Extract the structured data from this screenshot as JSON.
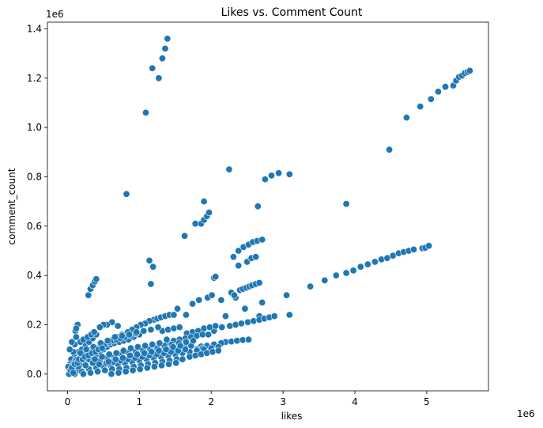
{
  "chart_data": {
    "type": "scatter",
    "title": "Likes vs. Comment Count",
    "xlabel": "likes",
    "ylabel": "comment_count",
    "x_multiplier_label": "1e6",
    "y_multiplier_label": "1e6",
    "xlim": [
      -0.28,
      5.86
    ],
    "ylim": [
      -0.068,
      1.427
    ],
    "x_ticks": [
      0,
      1,
      2,
      3,
      4,
      5
    ],
    "x_tick_labels": [
      "0",
      "1",
      "2",
      "3",
      "4",
      "5"
    ],
    "y_ticks": [
      0.0,
      0.2,
      0.4,
      0.6,
      0.8,
      1.0,
      1.2,
      1.4
    ],
    "y_tick_labels": [
      "0.0",
      "0.2",
      "0.4",
      "0.6",
      "0.8",
      "1.0",
      "1.2",
      "1.4"
    ],
    "grid": false,
    "marker_color": "#1f77b4",
    "marker_edge_color": "#ffffff",
    "points": [
      [
        1.09,
        1.06
      ],
      [
        1.18,
        1.24
      ],
      [
        1.27,
        1.2
      ],
      [
        1.32,
        1.28
      ],
      [
        1.36,
        1.32
      ],
      [
        1.39,
        1.36
      ],
      [
        0.82,
        0.73
      ],
      [
        2.25,
        0.83
      ],
      [
        2.75,
        0.79
      ],
      [
        2.84,
        0.805
      ],
      [
        2.94,
        0.815
      ],
      [
        3.09,
        0.81
      ],
      [
        4.48,
        0.91
      ],
      [
        4.72,
        1.04
      ],
      [
        4.91,
        1.085
      ],
      [
        5.06,
        1.115
      ],
      [
        5.16,
        1.145
      ],
      [
        5.26,
        1.165
      ],
      [
        5.37,
        1.17
      ],
      [
        5.41,
        1.19
      ],
      [
        5.45,
        1.205
      ],
      [
        5.49,
        1.21
      ],
      [
        5.53,
        1.22
      ],
      [
        5.57,
        1.225
      ],
      [
        5.6,
        1.23
      ],
      [
        1.63,
        0.56
      ],
      [
        1.78,
        0.61
      ],
      [
        1.86,
        0.61
      ],
      [
        1.9,
        0.625
      ],
      [
        1.94,
        0.64
      ],
      [
        1.97,
        0.655
      ],
      [
        1.9,
        0.7
      ],
      [
        2.65,
        0.68
      ],
      [
        3.88,
        0.69
      ],
      [
        1.14,
        0.46
      ],
      [
        1.19,
        0.435
      ],
      [
        1.16,
        0.365
      ],
      [
        0.29,
        0.32
      ],
      [
        0.32,
        0.345
      ],
      [
        0.35,
        0.36
      ],
      [
        0.38,
        0.375
      ],
      [
        0.4,
        0.385
      ],
      [
        2.31,
        0.475
      ],
      [
        2.38,
        0.5
      ],
      [
        2.45,
        0.515
      ],
      [
        2.52,
        0.525
      ],
      [
        2.58,
        0.535
      ],
      [
        2.64,
        0.54
      ],
      [
        2.71,
        0.545
      ],
      [
        2.38,
        0.44
      ],
      [
        2.5,
        0.455
      ],
      [
        2.56,
        0.47
      ],
      [
        2.62,
        0.475
      ],
      [
        2.28,
        0.33
      ],
      [
        2.34,
        0.31
      ],
      [
        2.4,
        0.34
      ],
      [
        2.44,
        0.345
      ],
      [
        2.49,
        0.35
      ],
      [
        2.53,
        0.355
      ],
      [
        2.57,
        0.36
      ],
      [
        2.62,
        0.365
      ],
      [
        2.67,
        0.37
      ],
      [
        2.04,
        0.39
      ],
      [
        2.06,
        0.395
      ],
      [
        3.38,
        0.355
      ],
      [
        3.58,
        0.38
      ],
      [
        3.74,
        0.4
      ],
      [
        3.88,
        0.41
      ],
      [
        3.98,
        0.42
      ],
      [
        4.08,
        0.435
      ],
      [
        4.18,
        0.445
      ],
      [
        4.28,
        0.455
      ],
      [
        4.37,
        0.465
      ],
      [
        4.45,
        0.47
      ],
      [
        4.53,
        0.48
      ],
      [
        4.61,
        0.49
      ],
      [
        4.68,
        0.495
      ],
      [
        4.75,
        0.5
      ],
      [
        4.82,
        0.505
      ],
      [
        4.94,
        0.51
      ],
      [
        4.98,
        0.512
      ],
      [
        5.03,
        0.52
      ],
      [
        1.53,
        0.265
      ],
      [
        1.65,
        0.24
      ],
      [
        1.74,
        0.285
      ],
      [
        1.83,
        0.3
      ],
      [
        1.95,
        0.31
      ],
      [
        2.01,
        0.32
      ],
      [
        2.14,
        0.3
      ],
      [
        2.32,
        0.32
      ],
      [
        2.47,
        0.265
      ],
      [
        2.67,
        0.235
      ],
      [
        2.71,
        0.29
      ],
      [
        3.05,
        0.32
      ],
      [
        3.09,
        0.24
      ],
      [
        2.26,
        0.195
      ],
      [
        2.34,
        0.2
      ],
      [
        2.42,
        0.205
      ],
      [
        2.51,
        0.21
      ],
      [
        2.59,
        0.215
      ],
      [
        2.67,
        0.22
      ],
      [
        2.74,
        0.225
      ],
      [
        2.81,
        0.23
      ],
      [
        2.88,
        0.235
      ],
      [
        2.15,
        0.19
      ],
      [
        2.04,
        0.175
      ],
      [
        2.2,
        0.235
      ],
      [
        2.2,
        0.13
      ],
      [
        2.28,
        0.132
      ],
      [
        2.36,
        0.135
      ],
      [
        2.44,
        0.138
      ],
      [
        2.52,
        0.14
      ],
      [
        2.04,
        0.12
      ],
      [
        2.14,
        0.125
      ],
      [
        1.94,
        0.115
      ],
      [
        1.86,
        0.112
      ],
      [
        1.2,
        0.22
      ],
      [
        1.25,
        0.225
      ],
      [
        1.3,
        0.23
      ],
      [
        1.36,
        0.235
      ],
      [
        1.42,
        0.24
      ],
      [
        1.48,
        0.24
      ],
      [
        1.14,
        0.215
      ],
      [
        1.08,
        0.205
      ],
      [
        1.02,
        0.2
      ],
      [
        0.96,
        0.19
      ],
      [
        0.9,
        0.18
      ],
      [
        0.84,
        0.17
      ],
      [
        0.76,
        0.16
      ],
      [
        0.7,
        0.15
      ],
      [
        0.63,
        0.14
      ],
      [
        1.32,
        0.175
      ],
      [
        1.4,
        0.18
      ],
      [
        1.48,
        0.185
      ],
      [
        1.56,
        0.19
      ],
      [
        1.66,
        0.165
      ],
      [
        1.74,
        0.17
      ],
      [
        1.82,
        0.175
      ],
      [
        1.9,
        0.185
      ],
      [
        1.98,
        0.19
      ],
      [
        2.06,
        0.195
      ],
      [
        1.4,
        0.13
      ],
      [
        1.48,
        0.135
      ],
      [
        1.56,
        0.14
      ],
      [
        1.64,
        0.145
      ],
      [
        1.72,
        0.15
      ],
      [
        1.8,
        0.155
      ],
      [
        1.88,
        0.16
      ],
      [
        1.96,
        0.16
      ],
      [
        1.24,
        0.09
      ],
      [
        1.32,
        0.095
      ],
      [
        1.4,
        0.1
      ],
      [
        1.48,
        0.105
      ],
      [
        1.56,
        0.11
      ],
      [
        1.64,
        0.11
      ],
      [
        1.72,
        0.115
      ],
      [
        1.8,
        0.1
      ],
      [
        1.88,
        0.105
      ],
      [
        0.14,
        0.2
      ],
      [
        0.11,
        0.175
      ],
      [
        0.12,
        0.185
      ],
      [
        0.62,
        0.21
      ],
      [
        0.7,
        0.195
      ],
      [
        0.55,
        0.2
      ],
      [
        0.5,
        0.2
      ],
      [
        0.45,
        0.19
      ],
      [
        0.05,
        0.01
      ],
      [
        0.08,
        0.02
      ],
      [
        0.12,
        0.03
      ],
      [
        0.16,
        0.015
      ],
      [
        0.2,
        0.04
      ],
      [
        0.25,
        0.05
      ],
      [
        0.3,
        0.06
      ],
      [
        0.35,
        0.07
      ],
      [
        0.4,
        0.08
      ],
      [
        0.45,
        0.09
      ],
      [
        0.5,
        0.1
      ],
      [
        0.55,
        0.11
      ],
      [
        0.6,
        0.12
      ],
      [
        0.65,
        0.125
      ],
      [
        0.72,
        0.13
      ],
      [
        0.78,
        0.135
      ],
      [
        0.85,
        0.14
      ],
      [
        0.92,
        0.15
      ],
      [
        1.0,
        0.16
      ],
      [
        0.06,
        0.05
      ],
      [
        0.1,
        0.07
      ],
      [
        0.15,
        0.09
      ],
      [
        0.2,
        0.1
      ],
      [
        0.25,
        0.12
      ],
      [
        0.3,
        0.13
      ],
      [
        0.35,
        0.145
      ],
      [
        0.4,
        0.16
      ],
      [
        0.1,
        0.0
      ],
      [
        0.2,
        0.01
      ],
      [
        0.3,
        0.02
      ],
      [
        0.4,
        0.025
      ],
      [
        0.5,
        0.03
      ],
      [
        0.6,
        0.035
      ],
      [
        0.7,
        0.04
      ],
      [
        0.8,
        0.045
      ],
      [
        0.9,
        0.05
      ],
      [
        1.0,
        0.055
      ],
      [
        1.1,
        0.06
      ],
      [
        1.2,
        0.065
      ],
      [
        1.3,
        0.07
      ],
      [
        1.4,
        0.075
      ],
      [
        1.5,
        0.08
      ],
      [
        1.6,
        0.085
      ],
      [
        1.7,
        0.09
      ],
      [
        1.8,
        0.095
      ],
      [
        1.9,
        0.1
      ],
      [
        2.0,
        0.105
      ],
      [
        2.1,
        0.11
      ],
      [
        0.15,
        0.03
      ],
      [
        0.25,
        0.035
      ],
      [
        0.35,
        0.045
      ],
      [
        0.45,
        0.055
      ],
      [
        0.55,
        0.065
      ],
      [
        0.65,
        0.07
      ],
      [
        0.75,
        0.08
      ],
      [
        0.85,
        0.085
      ],
      [
        0.95,
        0.09
      ],
      [
        1.05,
        0.095
      ],
      [
        1.15,
        0.1
      ],
      [
        1.25,
        0.105
      ],
      [
        1.35,
        0.115
      ],
      [
        1.45,
        0.12
      ],
      [
        1.55,
        0.125
      ],
      [
        1.65,
        0.13
      ],
      [
        1.75,
        0.135
      ],
      [
        0.05,
        0.06
      ],
      [
        0.08,
        0.09
      ],
      [
        0.03,
        0.1
      ],
      [
        0.1,
        0.12
      ],
      [
        0.06,
        0.13
      ],
      [
        0.12,
        0.15
      ],
      [
        0.18,
        0.13
      ],
      [
        0.22,
        0.14
      ],
      [
        0.28,
        0.15
      ],
      [
        0.33,
        0.16
      ],
      [
        0.37,
        0.17
      ],
      [
        0.02,
        0.0
      ],
      [
        0.03,
        0.02
      ],
      [
        0.04,
        0.04
      ],
      [
        0.01,
        0.03
      ],
      [
        0.07,
        0.035
      ],
      [
        0.09,
        0.045
      ],
      [
        0.11,
        0.055
      ],
      [
        0.13,
        0.06
      ],
      [
        0.17,
        0.065
      ],
      [
        0.19,
        0.075
      ],
      [
        0.23,
        0.08
      ],
      [
        0.27,
        0.085
      ],
      [
        0.31,
        0.095
      ],
      [
        0.36,
        0.1
      ],
      [
        0.42,
        0.105
      ],
      [
        0.47,
        0.115
      ],
      [
        0.52,
        0.12
      ],
      [
        0.58,
        0.13
      ],
      [
        0.64,
        0.135
      ],
      [
        0.68,
        0.14
      ],
      [
        0.74,
        0.145
      ],
      [
        0.8,
        0.15
      ],
      [
        0.88,
        0.155
      ],
      [
        0.95,
        0.165
      ],
      [
        0.22,
        0.0
      ],
      [
        0.32,
        0.005
      ],
      [
        0.42,
        0.01
      ],
      [
        0.52,
        0.015
      ],
      [
        0.62,
        0.02
      ],
      [
        0.72,
        0.02
      ],
      [
        0.82,
        0.025
      ],
      [
        0.92,
        0.03
      ],
      [
        1.02,
        0.035
      ],
      [
        1.12,
        0.04
      ],
      [
        1.22,
        0.045
      ],
      [
        1.32,
        0.05
      ],
      [
        1.42,
        0.055
      ],
      [
        1.52,
        0.06
      ],
      [
        0.38,
        0.06
      ],
      [
        0.48,
        0.07
      ],
      [
        0.58,
        0.08
      ],
      [
        0.68,
        0.085
      ],
      [
        0.78,
        0.095
      ],
      [
        0.88,
        0.105
      ],
      [
        0.98,
        0.11
      ],
      [
        1.08,
        0.115
      ],
      [
        1.18,
        0.12
      ],
      [
        1.28,
        0.125
      ],
      [
        1.38,
        0.14
      ],
      [
        0.44,
        0.04
      ],
      [
        0.54,
        0.045
      ],
      [
        0.64,
        0.05
      ],
      [
        0.74,
        0.055
      ],
      [
        0.84,
        0.06
      ],
      [
        0.94,
        0.065
      ],
      [
        1.04,
        0.07
      ],
      [
        1.14,
        0.075
      ],
      [
        1.24,
        0.08
      ],
      [
        1.34,
        0.085
      ],
      [
        1.44,
        0.09
      ],
      [
        1.54,
        0.095
      ],
      [
        1.64,
        0.1
      ],
      [
        0.26,
        0.1
      ],
      [
        0.36,
        0.11
      ],
      [
        0.46,
        0.125
      ],
      [
        0.56,
        0.135
      ],
      [
        0.66,
        0.15
      ],
      [
        0.76,
        0.155
      ],
      [
        0.86,
        0.16
      ],
      [
        0.96,
        0.17
      ],
      [
        1.06,
        0.175
      ],
      [
        1.16,
        0.18
      ],
      [
        1.26,
        0.19
      ],
      [
        0.04,
        0.015
      ],
      [
        0.06,
        0.025
      ],
      [
        0.08,
        0.005
      ],
      [
        0.1,
        0.04
      ],
      [
        0.14,
        0.045
      ],
      [
        0.16,
        0.06
      ],
      [
        0.18,
        0.085
      ],
      [
        0.21,
        0.06
      ],
      [
        0.24,
        0.07
      ],
      [
        0.29,
        0.075
      ],
      [
        0.34,
        0.085
      ],
      [
        0.39,
        0.09
      ],
      [
        0.43,
        0.1
      ],
      [
        0.48,
        0.105
      ],
      [
        0.57,
        0.05
      ],
      [
        0.67,
        0.06
      ],
      [
        0.77,
        0.065
      ],
      [
        0.87,
        0.075
      ],
      [
        0.97,
        0.08
      ],
      [
        1.07,
        0.085
      ],
      [
        1.17,
        0.09
      ],
      [
        1.27,
        0.095
      ],
      [
        1.37,
        0.1
      ],
      [
        1.47,
        0.11
      ],
      [
        1.57,
        0.115
      ],
      [
        0.61,
        0.0
      ],
      [
        0.71,
        0.005
      ],
      [
        0.81,
        0.01
      ],
      [
        0.91,
        0.015
      ],
      [
        1.01,
        0.02
      ],
      [
        1.11,
        0.025
      ],
      [
        1.21,
        0.03
      ],
      [
        1.31,
        0.035
      ],
      [
        1.41,
        0.04
      ],
      [
        1.51,
        0.045
      ],
      [
        1.6,
        0.06
      ],
      [
        1.7,
        0.07
      ],
      [
        1.78,
        0.075
      ],
      [
        1.86,
        0.08
      ],
      [
        1.94,
        0.085
      ],
      [
        2.02,
        0.09
      ],
      [
        2.1,
        0.095
      ]
    ]
  }
}
